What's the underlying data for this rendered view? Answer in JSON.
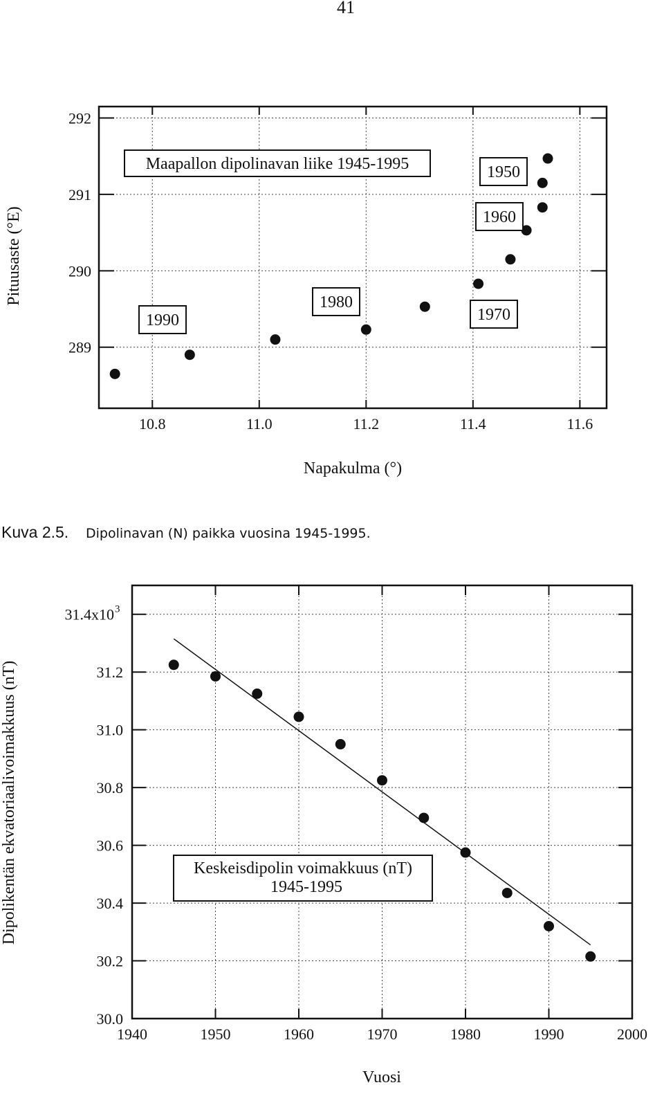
{
  "page_number": "41",
  "caption": {
    "label": "Kuva 2.5.",
    "text": "Dipolinavan (N) paikka vuosina 1945-1995."
  },
  "chart_data": [
    {
      "type": "scatter",
      "title": "",
      "xlabel": "Napakulma (°)",
      "ylabel": "Pituusaste (°E)",
      "xlim": [
        10.7,
        11.65
      ],
      "ylim": [
        288.2,
        292.15
      ],
      "grid": true,
      "grid_style": "dotted",
      "x_ticks": [
        10.8,
        11.0,
        11.2,
        11.4,
        11.6
      ],
      "x_tick_labels": [
        "10.8",
        "11.0",
        "11.2",
        "11.4",
        "11.6"
      ],
      "y_ticks": [
        289,
        290,
        291,
        292
      ],
      "y_tick_labels": [
        "289",
        "290",
        "291",
        "292"
      ],
      "series": [
        {
          "points": [
            [
              10.73,
              288.65
            ],
            [
              10.87,
              288.9
            ],
            [
              11.03,
              289.1
            ],
            [
              11.2,
              289.23
            ],
            [
              11.31,
              289.53
            ],
            [
              11.41,
              289.83
            ],
            [
              11.47,
              290.15
            ],
            [
              11.5,
              290.53
            ],
            [
              11.53,
              290.83
            ],
            [
              11.53,
              291.15
            ],
            [
              11.54,
              291.47
            ]
          ]
        }
      ],
      "annotations": [
        {
          "text": "Maapallon dipolinavan liike 1945-1995"
        },
        {
          "text": "1950"
        },
        {
          "text": "1960"
        },
        {
          "text": "1970"
        },
        {
          "text": "1980"
        },
        {
          "text": "1990"
        }
      ]
    },
    {
      "type": "scatter",
      "title": "",
      "xlabel": "Vuosi",
      "ylabel": "Dipolikentän ekvatoriaalivoimakkuus (nT)",
      "xlim": [
        1940,
        2000
      ],
      "ylim": [
        30.0,
        31.5
      ],
      "grid": true,
      "grid_style": "dotted",
      "x_ticks": [
        1940,
        1950,
        1960,
        1970,
        1980,
        1990,
        2000
      ],
      "x_tick_labels": [
        "1940",
        "1950",
        "1960",
        "1970",
        "1980",
        "1990",
        "2000"
      ],
      "y_ticks": [
        30.0,
        30.2,
        30.4,
        30.6,
        30.8,
        31.0,
        31.2,
        31.4
      ],
      "y_tick_labels": [
        "30.0",
        "30.2",
        "30.4",
        "30.6",
        "30.8",
        "31.0",
        "31.2",
        "31.4x10"
      ],
      "y_top_exponent": "3",
      "series": [
        {
          "x": [
            1945,
            1950,
            1955,
            1960,
            1965,
            1970,
            1975,
            1980,
            1985,
            1990,
            1995
          ],
          "y": [
            31.225,
            31.185,
            31.125,
            31.045,
            30.95,
            30.825,
            30.695,
            30.575,
            30.435,
            30.32,
            30.215
          ]
        }
      ],
      "trend_line": {
        "x": [
          1945,
          1995
        ],
        "y": [
          31.315,
          30.255
        ]
      },
      "annotations": [
        {
          "lines": [
            "Keskeisdipolin voimakkuus (nT)",
            "1945-1995"
          ]
        }
      ]
    }
  ]
}
